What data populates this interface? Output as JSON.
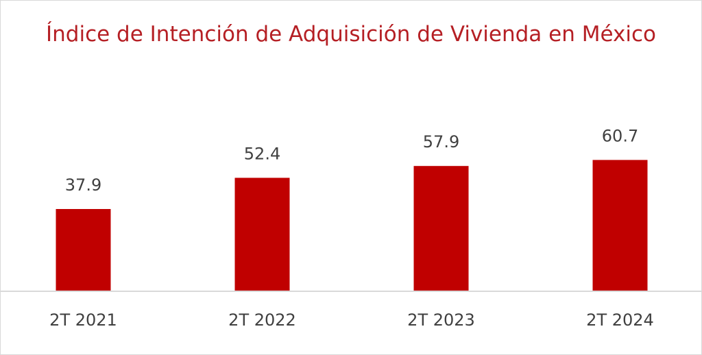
{
  "chart_data": {
    "type": "bar",
    "title": "Índice de Intención de Adquisición de Vivienda en México",
    "categories": [
      "2T 2021",
      "2T 2022",
      "2T 2023",
      "2T 2024"
    ],
    "values": [
      37.9,
      52.4,
      57.9,
      60.7
    ],
    "color": "#c00000"
  }
}
